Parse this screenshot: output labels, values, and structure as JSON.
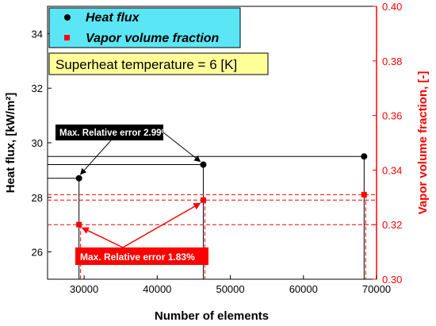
{
  "chart_data": {
    "type": "scatter",
    "xlabel": "Number of elements",
    "ylabel": "Heat flux, [kW/m²]",
    "ylabel_right": "Vapor volume fraction, [-]",
    "xlim": [
      25000,
      70000
    ],
    "ylim": [
      25,
      35
    ],
    "ylim_right": [
      0.3,
      0.4
    ],
    "x_ticks": [
      "30000",
      "40000",
      "50000",
      "60000",
      "70000"
    ],
    "y_ticks": [
      "26",
      "28",
      "30",
      "32",
      "34"
    ],
    "y_ticks_right": [
      "0.30",
      "0.32",
      "0.34",
      "0.36",
      "0.38",
      "0.40"
    ],
    "grid": false,
    "legend": {
      "position": "top-left",
      "entries": [
        "Heat flux",
        "Vapor volume fraction"
      ]
    },
    "annotation_condition": "Superheat temperature = 6 [K]",
    "annotation_heat_error": "Max. Relative error 2.99%",
    "annotation_vapor_error": "Max. Relative error 1.83%",
    "colors": {
      "heat": "#000000",
      "vapor": "#ff0000",
      "legend_bg": "#5be6f5",
      "condition_bg": "#ffff99",
      "heat_label_bg": "#000000",
      "vapor_label_bg": "#ff0000"
    },
    "series": [
      {
        "name": "Heat flux",
        "axis": "left",
        "x": [
          29300,
          46300,
          68300
        ],
        "y": [
          28.7,
          29.2,
          29.5
        ]
      },
      {
        "name": "Vapor volume fraction",
        "axis": "right",
        "x": [
          29300,
          46300,
          68300
        ],
        "y": [
          0.32,
          0.329,
          0.331
        ]
      }
    ]
  }
}
